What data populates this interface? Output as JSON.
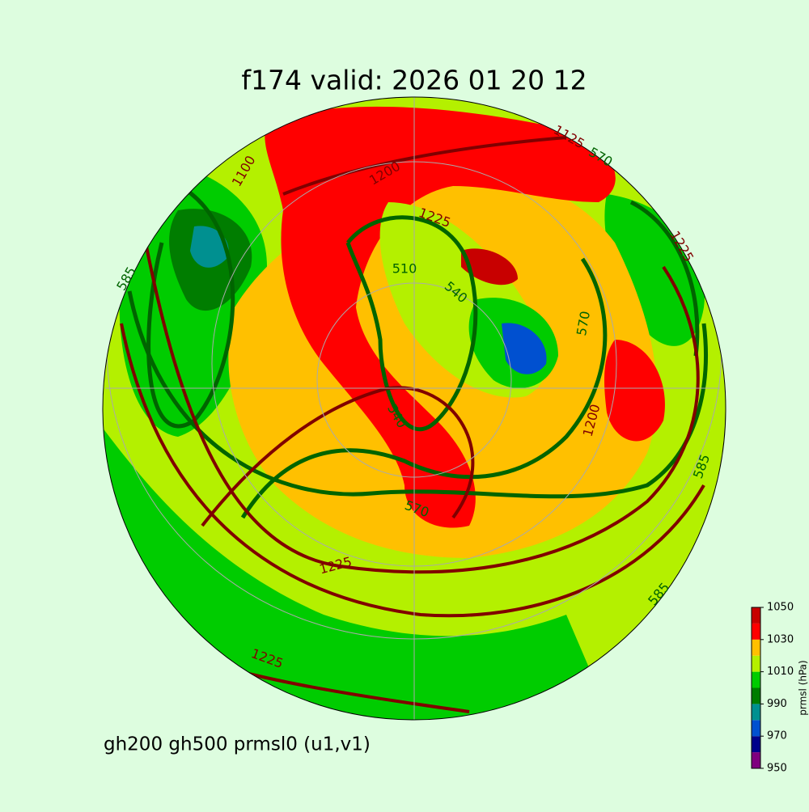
{
  "title": "f174 valid:   2026 01 20 12",
  "footer": "gh200 gh500 prmsl0 (u1,v1)",
  "colorbar": {
    "label": "prmsl (hPa)",
    "levels": [
      950,
      960,
      970,
      980,
      990,
      1000,
      1010,
      1020,
      1030,
      1040,
      1050
    ],
    "colors": [
      "#7f007f",
      "#00008b",
      "#0050d0",
      "#009090",
      "#007d00",
      "#00cc00",
      "#b4f000",
      "#ffc000",
      "#ff0000",
      "#c80000"
    ],
    "ticks": [
      950,
      970,
      990,
      1010,
      1030,
      1050
    ]
  },
  "contour_labels": [
    "1100",
    "1125",
    "570",
    "585",
    "1225",
    "1200",
    "1225",
    "510",
    "540",
    "540",
    "570",
    "1200",
    "585",
    "1225",
    "1225",
    "585",
    "570"
  ]
}
